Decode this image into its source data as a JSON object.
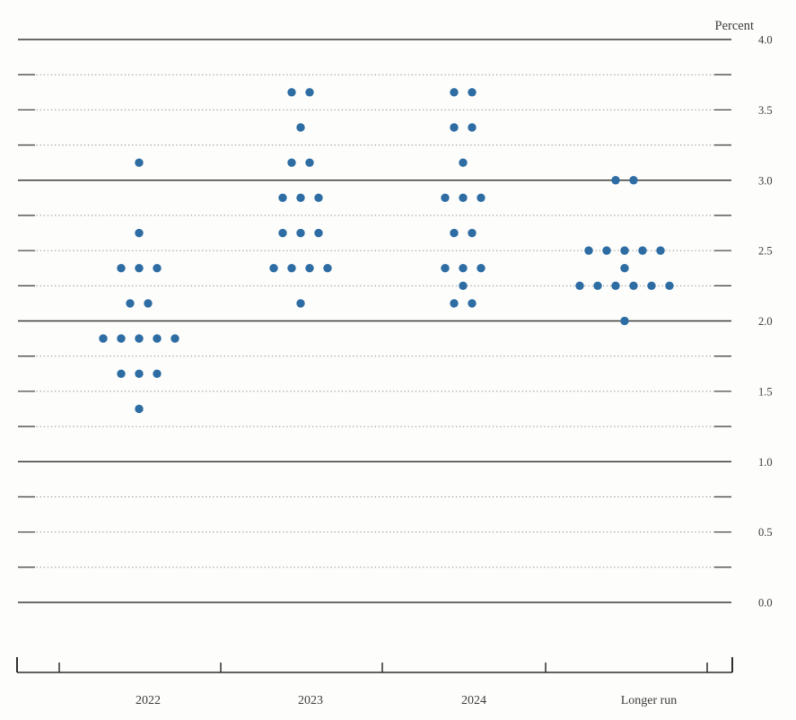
{
  "chart_data": {
    "type": "scatter",
    "subtype": "fomc_dot_plot",
    "unit_label": "Percent",
    "categories": [
      "2022",
      "2023",
      "2024",
      "Longer run"
    ],
    "ylim": [
      0.0,
      4.0
    ],
    "y_gridline_step": 0.25,
    "y_solid_gridlines": [
      0.0,
      1.0,
      2.0,
      3.0,
      4.0
    ],
    "y_axis_side": "right",
    "grid_on": true,
    "legend": "none",
    "y_tick_labels": [
      {
        "value": 4.0,
        "label": "4.0"
      },
      {
        "value": 3.5,
        "label": "3.5"
      },
      {
        "value": 3.0,
        "label": "3.0"
      },
      {
        "value": 2.5,
        "label": "2.5"
      },
      {
        "value": 2.0,
        "label": "2.0"
      },
      {
        "value": 1.5,
        "label": "1.5"
      },
      {
        "value": 1.0,
        "label": "1.0"
      },
      {
        "value": 0.5,
        "label": "0.5"
      },
      {
        "value": 0.0,
        "label": "0.0"
      }
    ],
    "dot_color": "#2e6da4",
    "gridline_color": "#3a3a3a",
    "dotted_gridline_color": "#8c8c8c",
    "dots": [
      {
        "category": "2022",
        "rate": 3.125,
        "count": 1
      },
      {
        "category": "2022",
        "rate": 2.625,
        "count": 1
      },
      {
        "category": "2022",
        "rate": 2.375,
        "count": 3
      },
      {
        "category": "2022",
        "rate": 2.125,
        "count": 2
      },
      {
        "category": "2022",
        "rate": 1.875,
        "count": 5
      },
      {
        "category": "2022",
        "rate": 1.625,
        "count": 3
      },
      {
        "category": "2022",
        "rate": 1.375,
        "count": 1
      },
      {
        "category": "2023",
        "rate": 3.625,
        "count": 2
      },
      {
        "category": "2023",
        "rate": 3.375,
        "count": 1
      },
      {
        "category": "2023",
        "rate": 3.125,
        "count": 2
      },
      {
        "category": "2023",
        "rate": 2.875,
        "count": 3
      },
      {
        "category": "2023",
        "rate": 2.625,
        "count": 3
      },
      {
        "category": "2023",
        "rate": 2.375,
        "count": 4
      },
      {
        "category": "2023",
        "rate": 2.125,
        "count": 1
      },
      {
        "category": "2024",
        "rate": 3.625,
        "count": 2
      },
      {
        "category": "2024",
        "rate": 3.375,
        "count": 2
      },
      {
        "category": "2024",
        "rate": 3.125,
        "count": 1
      },
      {
        "category": "2024",
        "rate": 2.875,
        "count": 3
      },
      {
        "category": "2024",
        "rate": 2.625,
        "count": 2
      },
      {
        "category": "2024",
        "rate": 2.375,
        "count": 3
      },
      {
        "category": "2024",
        "rate": 2.25,
        "count": 1
      },
      {
        "category": "2024",
        "rate": 2.125,
        "count": 2
      },
      {
        "category": "Longer run",
        "rate": 3.0,
        "count": 2
      },
      {
        "category": "Longer run",
        "rate": 2.5,
        "count": 5
      },
      {
        "category": "Longer run",
        "rate": 2.375,
        "count": 1
      },
      {
        "category": "Longer run",
        "rate": 2.25,
        "count": 6
      },
      {
        "category": "Longer run",
        "rate": 2.0,
        "count": 1
      }
    ]
  }
}
